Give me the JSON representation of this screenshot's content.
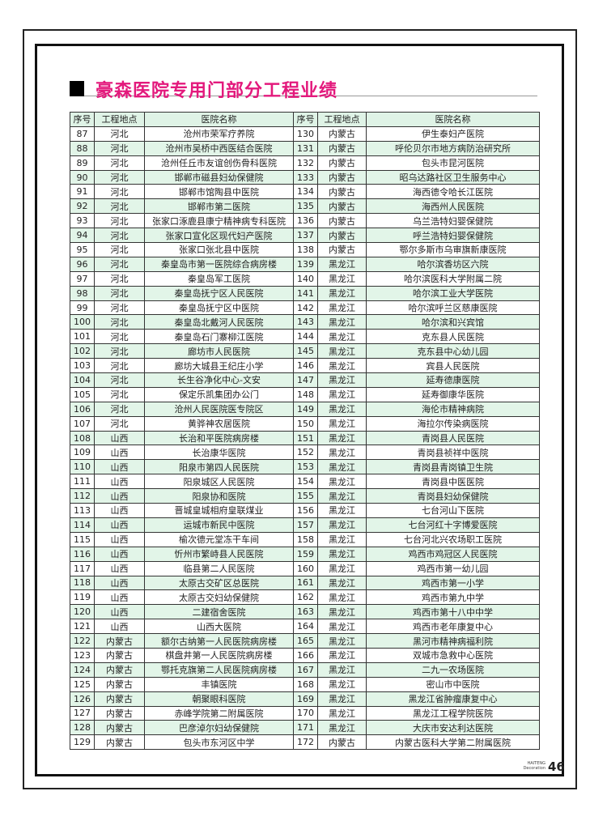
{
  "title": "豪森医院专用门部分工程业绩",
  "headers": [
    "序号",
    "工程地点",
    "医院名称",
    "序号",
    "工程地点",
    "医院名称"
  ],
  "left_rows": [
    [
      "87",
      "河北",
      "沧州市荣军疗养院"
    ],
    [
      "88",
      "河北",
      "沧州市吴桥中西医结合医院"
    ],
    [
      "89",
      "河北",
      "沧州任丘市友谊创伤骨科医院"
    ],
    [
      "90",
      "河北",
      "邯郸市磁县妇幼保健院"
    ],
    [
      "91",
      "河北",
      "邯郸市馆陶县中医院"
    ],
    [
      "92",
      "河北",
      "邯郸市第二医院"
    ],
    [
      "93",
      "河北",
      "张家口涿鹿县康宁精神病专科医院"
    ],
    [
      "94",
      "河北",
      "张家口宣化区现代妇产医院"
    ],
    [
      "95",
      "河北",
      "张家口张北县中医院"
    ],
    [
      "96",
      "河北",
      "秦皇岛市第一医院综合病房楼"
    ],
    [
      "97",
      "河北",
      "秦皇岛军工医院"
    ],
    [
      "98",
      "河北",
      "秦皇岛抚宁区人民医院"
    ],
    [
      "99",
      "河北",
      "秦皇岛抚宁区中医院"
    ],
    [
      "100",
      "河北",
      "秦皇岛北戴河人民医院"
    ],
    [
      "101",
      "河北",
      "秦皇岛石门寨柳江医院"
    ],
    [
      "102",
      "河北",
      "廊坊市人民医院"
    ],
    [
      "103",
      "河北",
      "廊坊大城县王纪庄小学"
    ],
    [
      "104",
      "河北",
      "长生谷净化中心-文安"
    ],
    [
      "105",
      "河北",
      "保定乐凯集团办公门"
    ],
    [
      "106",
      "河北",
      "沧州人民医院医专院区"
    ],
    [
      "107",
      "河北",
      "黄骅神农居医院"
    ],
    [
      "108",
      "山西",
      "长治和平医院病房楼"
    ],
    [
      "109",
      "山西",
      "长治康华医院"
    ],
    [
      "110",
      "山西",
      "阳泉市第四人民医院"
    ],
    [
      "111",
      "山西",
      "阳泉城区人民医院"
    ],
    [
      "112",
      "山西",
      "阳泉协和医院"
    ],
    [
      "113",
      "山西",
      "晋城皇城相府皇联煤业"
    ],
    [
      "114",
      "山西",
      "运城市新民中医院"
    ],
    [
      "115",
      "山西",
      "榆次德元堂冻干车间"
    ],
    [
      "116",
      "山西",
      "忻州市繁峙县人民医院"
    ],
    [
      "117",
      "山西",
      "临县第二人民医院"
    ],
    [
      "118",
      "山西",
      "太原古交矿区总医院"
    ],
    [
      "119",
      "山西",
      "太原古交妇幼保健院"
    ],
    [
      "120",
      "山西",
      "二建宿舍医院"
    ],
    [
      "121",
      "山西",
      "山西大医院"
    ],
    [
      "122",
      "内蒙古",
      "额尔古纳第一人民医院病房楼"
    ],
    [
      "123",
      "内蒙古",
      "棋盘井第一人民医院病房楼"
    ],
    [
      "124",
      "内蒙古",
      "鄂托克旗第二人民医院病房楼"
    ],
    [
      "125",
      "内蒙古",
      "丰镇医院"
    ],
    [
      "126",
      "内蒙古",
      "朝聚眼科医院"
    ],
    [
      "127",
      "内蒙古",
      "赤峰学院第二附属医院"
    ],
    [
      "128",
      "内蒙古",
      "巴彦淖尔妇幼保健院"
    ],
    [
      "129",
      "内蒙古",
      "包头市东河区中学"
    ]
  ],
  "right_rows": [
    [
      "130",
      "内蒙古",
      "伊生泰妇产医院"
    ],
    [
      "131",
      "内蒙古",
      "呼伦贝尔市地方病防治研究所"
    ],
    [
      "132",
      "内蒙古",
      "包头市昆河医院"
    ],
    [
      "133",
      "内蒙古",
      "昭乌达路社区卫生服务中心"
    ],
    [
      "134",
      "内蒙古",
      "海西德令哈长江医院"
    ],
    [
      "135",
      "内蒙古",
      "海西州人民医院"
    ],
    [
      "136",
      "内蒙古",
      "乌兰浩特妇婴保健院"
    ],
    [
      "137",
      "内蒙古",
      "呼兰浩特妇婴保健院"
    ],
    [
      "138",
      "内蒙古",
      "鄂尔多斯市乌审旗新康医院"
    ],
    [
      "139",
      "黑龙江",
      "哈尔滨香坊区六院"
    ],
    [
      "140",
      "黑龙江",
      "哈尔滨医科大学附属二院"
    ],
    [
      "141",
      "黑龙江",
      "哈尔滨工业大学医院"
    ],
    [
      "142",
      "黑龙江",
      "哈尔滨呼兰区慈康医院"
    ],
    [
      "143",
      "黑龙江",
      "哈尔滨和兴宾馆"
    ],
    [
      "144",
      "黑龙江",
      "克东县人民医院"
    ],
    [
      "145",
      "黑龙江",
      "克东县中心幼儿园"
    ],
    [
      "146",
      "黑龙江",
      "宾县人民医院"
    ],
    [
      "147",
      "黑龙江",
      "延寿德康医院"
    ],
    [
      "148",
      "黑龙江",
      "延寿御康华医院"
    ],
    [
      "149",
      "黑龙江",
      "海伦市精神病院"
    ],
    [
      "150",
      "黑龙江",
      "海拉尔传染病医院"
    ],
    [
      "151",
      "黑龙江",
      "青岗县人民医院"
    ],
    [
      "152",
      "黑龙江",
      "青岗县祯祥中医院"
    ],
    [
      "153",
      "黑龙江",
      "青岗县青岗镇卫生院"
    ],
    [
      "154",
      "黑龙江",
      "青岗县中医医院"
    ],
    [
      "155",
      "黑龙江",
      "青岗县妇幼保健院"
    ],
    [
      "156",
      "黑龙江",
      "七台河山下医院"
    ],
    [
      "157",
      "黑龙江",
      "七台河红十字博爱医院"
    ],
    [
      "158",
      "黑龙江",
      "七台河北兴农场职工医院"
    ],
    [
      "159",
      "黑龙江",
      "鸡西市鸡冠区人民医院"
    ],
    [
      "160",
      "黑龙江",
      "鸡西市第一幼儿园"
    ],
    [
      "161",
      "黑龙江",
      "鸡西市第一小学"
    ],
    [
      "162",
      "黑龙江",
      "鸡西市第九中学"
    ],
    [
      "163",
      "黑龙江",
      "鸡西市第十八中中学"
    ],
    [
      "164",
      "黑龙江",
      "鸡西市老年康复中心"
    ],
    [
      "165",
      "黑龙江",
      "黑河市精神病福利院"
    ],
    [
      "166",
      "黑龙江",
      "双城市急救中心医院"
    ],
    [
      "167",
      "黑龙江",
      "二九一农场医院"
    ],
    [
      "168",
      "黑龙江",
      "密山市中医院"
    ],
    [
      "169",
      "黑龙江",
      "黑龙江省肿瘤康复中心"
    ],
    [
      "170",
      "黑龙江",
      "黑龙江工程学院医院"
    ],
    [
      "171",
      "黑龙江",
      "大庆市安达利达医院"
    ],
    [
      "172",
      "内蒙古",
      "内蒙古医科大学第二附属医院"
    ]
  ],
  "footer": {
    "brand_line1": "HAITENG",
    "brand_line2": "Decoration",
    "page_number": "46"
  },
  "colors": {
    "title": "#e3197c",
    "row_alt": "#e2f5e8",
    "header_bg": "#dff3e6"
  }
}
